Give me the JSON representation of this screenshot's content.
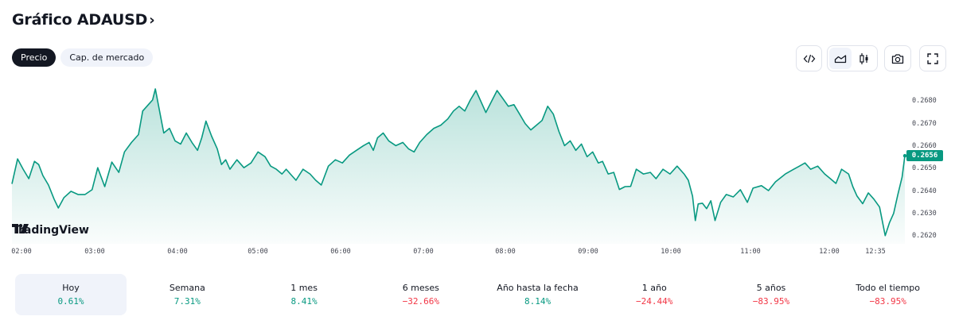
{
  "header": {
    "title": "Gráfico ADAUSD",
    "title_chevron": "›"
  },
  "tabs": [
    {
      "label": "Precio",
      "active": true
    },
    {
      "label": "Cap. de mercado",
      "active": false
    }
  ],
  "toolbar": {
    "embed_icon": "code-icon",
    "chart_type_area_icon": "area-chart-icon",
    "chart_type_candle_icon": "candlestick-icon",
    "snapshot_icon": "camera-icon",
    "fullscreen_icon": "fullscreen-icon",
    "selected_chart_type": "area"
  },
  "branding": {
    "logo_text": "TradingView"
  },
  "colors": {
    "line": "#089981",
    "positive": "#089981",
    "negative": "#f23645",
    "active_pill": "#131722",
    "price_tag": "#089981"
  },
  "current_price": "0.2656",
  "chart_data": {
    "type": "area",
    "title": "Gráfico ADAUSD",
    "symbol": "ADAUSD",
    "xlabel": "",
    "ylabel": "",
    "x_ticks": [
      "02:00",
      "03:00",
      "04:00",
      "05:00",
      "06:00",
      "07:00",
      "08:00",
      "09:00",
      "10:00",
      "11:00",
      "12:00",
      "12:35"
    ],
    "y_ticks": [
      "0.2680",
      "0.2670",
      "0.2660",
      "0.2650",
      "0.2640",
      "0.2630",
      "0.2620"
    ],
    "ylim": [
      0.2617,
      0.2686
    ],
    "last_value": 0.2656,
    "grid": false,
    "legend": "none",
    "series": [
      {
        "name": "ADAUSD",
        "points": [
          [
            "02:00",
            0.26431
          ],
          [
            "02:04",
            0.26542
          ],
          [
            "02:08",
            0.26496
          ],
          [
            "02:12",
            0.26454
          ],
          [
            "02:16",
            0.26531
          ],
          [
            "02:19",
            0.26517
          ],
          [
            "02:22",
            0.26468
          ],
          [
            "02:26",
            0.26426
          ],
          [
            "02:30",
            0.26363
          ],
          [
            "02:33",
            0.26324
          ],
          [
            "02:37",
            0.2637
          ],
          [
            "02:42",
            0.26398
          ],
          [
            "02:47",
            0.26384
          ],
          [
            "02:52",
            0.26384
          ],
          [
            "02:57",
            0.26405
          ],
          [
            "03:01",
            0.26503
          ],
          [
            "03:06",
            0.26419
          ],
          [
            "03:11",
            0.26528
          ],
          [
            "03:16",
            0.26482
          ],
          [
            "03:20",
            0.26573
          ],
          [
            "03:25",
            0.26615
          ],
          [
            "03:30",
            0.2665
          ],
          [
            "03:33",
            0.26755
          ],
          [
            "03:37",
            0.26783
          ],
          [
            "03:40",
            0.26804
          ],
          [
            "03:42",
            0.26853
          ],
          [
            "03:45",
            0.26755
          ],
          [
            "03:48",
            0.26657
          ],
          [
            "03:52",
            0.26678
          ],
          [
            "03:56",
            0.26622
          ],
          [
            "04:00",
            0.26608
          ],
          [
            "04:04",
            0.26657
          ],
          [
            "04:08",
            0.26615
          ],
          [
            "04:12",
            0.2658
          ],
          [
            "04:15",
            0.26636
          ],
          [
            "04:18",
            0.2671
          ],
          [
            "04:22",
            0.26643
          ],
          [
            "04:26",
            0.26587
          ],
          [
            "04:29",
            0.26517
          ],
          [
            "04:32",
            0.26538
          ],
          [
            "04:35",
            0.26496
          ],
          [
            "04:40",
            0.26538
          ],
          [
            "04:45",
            0.26503
          ],
          [
            "04:50",
            0.26524
          ],
          [
            "04:55",
            0.26573
          ],
          [
            "05:00",
            0.26552
          ],
          [
            "05:04",
            0.2651
          ],
          [
            "05:08",
            0.26496
          ],
          [
            "05:12",
            0.26475
          ],
          [
            "05:15",
            0.26496
          ],
          [
            "05:18",
            0.26475
          ],
          [
            "05:22",
            0.26447
          ],
          [
            "05:27",
            0.26496
          ],
          [
            "05:32",
            0.26475
          ],
          [
            "05:36",
            0.26447
          ],
          [
            "05:40",
            0.26426
          ],
          [
            "05:45",
            0.2651
          ],
          [
            "05:50",
            0.26538
          ],
          [
            "05:55",
            0.26524
          ],
          [
            "06:00",
            0.26559
          ],
          [
            "06:05",
            0.2658
          ],
          [
            "06:10",
            0.26601
          ],
          [
            "06:14",
            0.26615
          ],
          [
            "06:17",
            0.2658
          ],
          [
            "06:20",
            0.26636
          ],
          [
            "06:24",
            0.26657
          ],
          [
            "06:28",
            0.26622
          ],
          [
            "06:33",
            0.26601
          ],
          [
            "06:38",
            0.26615
          ],
          [
            "06:42",
            0.26587
          ],
          [
            "06:46",
            0.26573
          ],
          [
            "06:50",
            0.26615
          ],
          [
            "06:55",
            0.2665
          ],
          [
            "07:00",
            0.26678
          ],
          [
            "07:05",
            0.26692
          ],
          [
            "07:10",
            0.2672
          ],
          [
            "07:14",
            0.26755
          ],
          [
            "07:18",
            0.26776
          ],
          [
            "07:22",
            0.26755
          ],
          [
            "07:26",
            0.26804
          ],
          [
            "07:30",
            0.26846
          ],
          [
            "07:34",
            0.2679
          ],
          [
            "07:37",
            0.26748
          ],
          [
            "07:41",
            0.26797
          ],
          [
            "07:45",
            0.26846
          ],
          [
            "07:49",
            0.26811
          ],
          [
            "07:53",
            0.26776
          ],
          [
            "07:57",
            0.26783
          ],
          [
            "08:01",
            0.26741
          ],
          [
            "08:05",
            0.26699
          ],
          [
            "08:09",
            0.26671
          ],
          [
            "08:13",
            0.26692
          ],
          [
            "08:17",
            0.26713
          ],
          [
            "08:21",
            0.26776
          ],
          [
            "08:25",
            0.26741
          ],
          [
            "08:29",
            0.26664
          ],
          [
            "08:33",
            0.26601
          ],
          [
            "08:37",
            0.26622
          ],
          [
            "08:41",
            0.2658
          ],
          [
            "08:45",
            0.26608
          ],
          [
            "08:49",
            0.26552
          ],
          [
            "08:53",
            0.26573
          ],
          [
            "08:57",
            0.26524
          ],
          [
            "09:00",
            0.26531
          ],
          [
            "09:04",
            0.26475
          ],
          [
            "09:08",
            0.26482
          ],
          [
            "09:12",
            0.26406
          ],
          [
            "09:16",
            0.26419
          ],
          [
            "09:20",
            0.2642
          ],
          [
            "09:24",
            0.26496
          ],
          [
            "09:29",
            0.26475
          ],
          [
            "09:34",
            0.26482
          ],
          [
            "09:38",
            0.26454
          ],
          [
            "09:43",
            0.26496
          ],
          [
            "09:48",
            0.26475
          ],
          [
            "09:53",
            0.2651
          ],
          [
            "09:58",
            0.26475
          ],
          [
            "10:01",
            0.26447
          ],
          [
            "10:04",
            0.26377
          ],
          [
            "10:06",
            0.26268
          ],
          [
            "10:08",
            0.26342
          ],
          [
            "10:11",
            0.26345
          ],
          [
            "10:14",
            0.26321
          ],
          [
            "10:17",
            0.26356
          ],
          [
            "10:20",
            0.26268
          ],
          [
            "10:24",
            0.26349
          ],
          [
            "10:28",
            0.26384
          ],
          [
            "10:33",
            0.26373
          ],
          [
            "10:38",
            0.26405
          ],
          [
            "10:43",
            0.26349
          ],
          [
            "10:47",
            0.26412
          ],
          [
            "10:53",
            0.26423
          ],
          [
            "10:58",
            0.26401
          ],
          [
            "11:03",
            0.2644
          ],
          [
            "11:10",
            0.26475
          ],
          [
            "11:16",
            0.26496
          ],
          [
            "11:20",
            0.2651
          ],
          [
            "11:24",
            0.26524
          ],
          [
            "11:28",
            0.26496
          ],
          [
            "11:33",
            0.2651
          ],
          [
            "11:38",
            0.26475
          ],
          [
            "11:42",
            0.26454
          ],
          [
            "11:46",
            0.26433
          ],
          [
            "11:50",
            0.26496
          ],
          [
            "11:55",
            0.26475
          ],
          [
            "11:58",
            0.26419
          ],
          [
            "12:01",
            0.26377
          ],
          [
            "12:05",
            0.26343
          ],
          [
            "12:09",
            0.26391
          ],
          [
            "12:13",
            0.26363
          ],
          [
            "12:17",
            0.26328
          ],
          [
            "12:21",
            0.26201
          ],
          [
            "12:24",
            0.26258
          ],
          [
            "12:27",
            0.263
          ],
          [
            "12:30",
            0.26384
          ],
          [
            "12:33",
            0.26461
          ],
          [
            "12:35",
            0.26556
          ]
        ]
      }
    ],
    "annotations": [
      {
        "type": "last_price_label",
        "value": "0.2656"
      }
    ]
  },
  "periods": [
    {
      "label": "Hoy",
      "value": "0.61%",
      "trend": "pos",
      "selected": true
    },
    {
      "label": "Semana",
      "value": "7.31%",
      "trend": "pos",
      "selected": false
    },
    {
      "label": "1 mes",
      "value": "8.41%",
      "trend": "pos",
      "selected": false
    },
    {
      "label": "6 meses",
      "value": "−32.66%",
      "trend": "neg",
      "selected": false
    },
    {
      "label": "Año hasta la fecha",
      "value": "8.14%",
      "trend": "pos",
      "selected": false
    },
    {
      "label": "1 año",
      "value": "−24.44%",
      "trend": "neg",
      "selected": false
    },
    {
      "label": "5 años",
      "value": "−83.95%",
      "trend": "neg",
      "selected": false
    },
    {
      "label": "Todo el tiempo",
      "value": "−83.95%",
      "trend": "neg",
      "selected": false
    }
  ]
}
